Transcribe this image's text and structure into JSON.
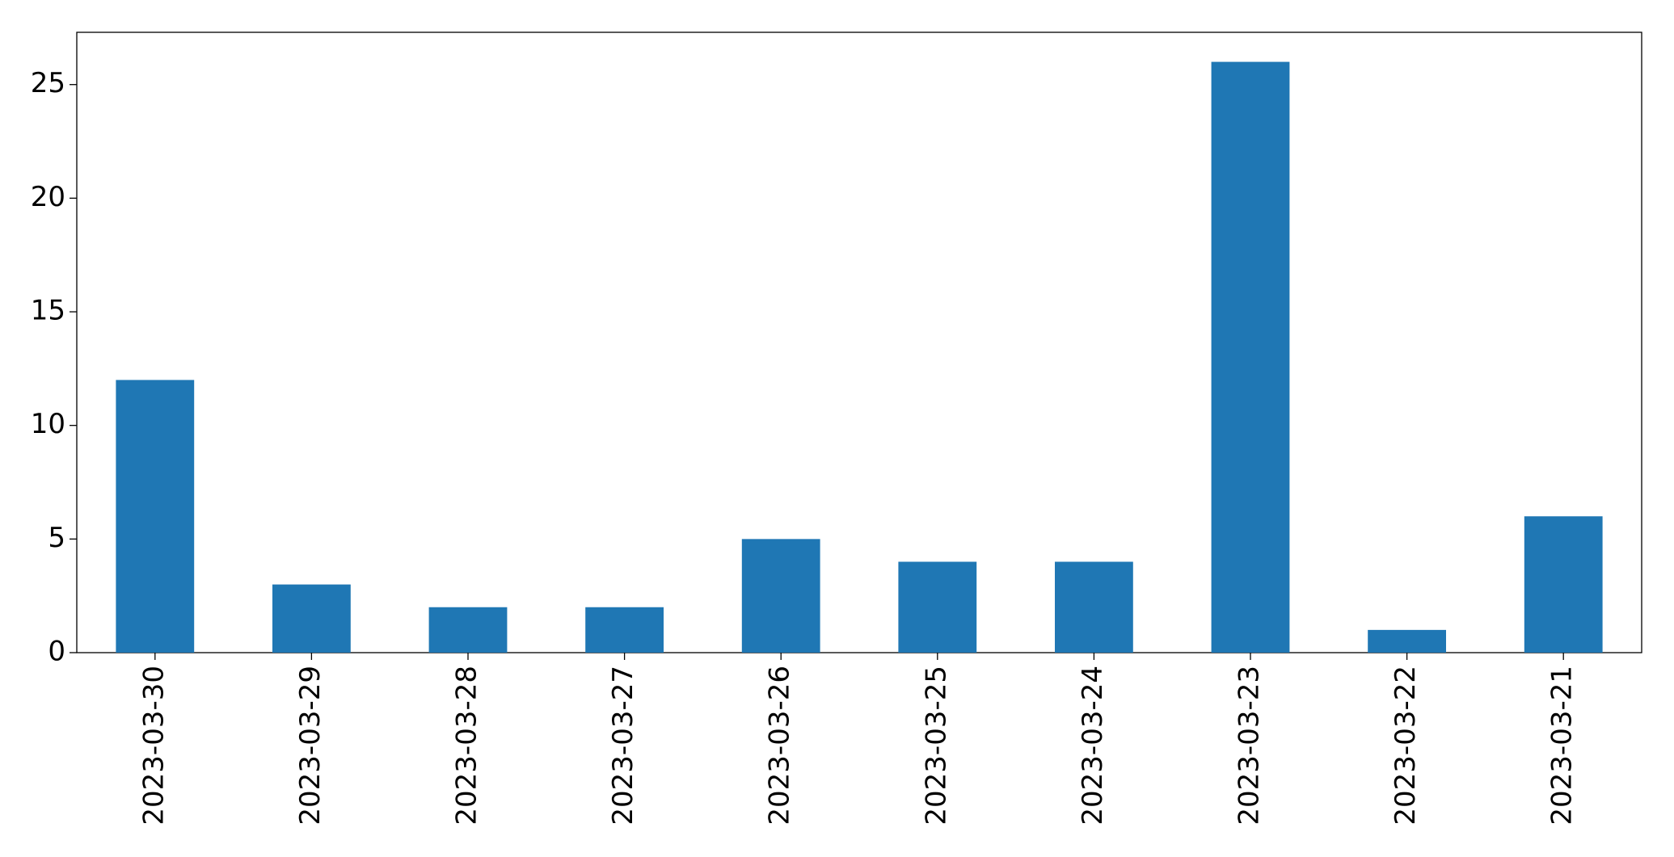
{
  "chart_data": {
    "type": "bar",
    "categories": [
      "2023-03-30",
      "2023-03-29",
      "2023-03-28",
      "2023-03-27",
      "2023-03-26",
      "2023-03-25",
      "2023-03-24",
      "2023-03-23",
      "2023-03-22",
      "2023-03-21"
    ],
    "values": [
      12,
      3,
      2,
      2,
      5,
      4,
      4,
      26,
      1,
      6
    ],
    "color": "#1f77b4",
    "ylim": [
      0,
      27.3
    ],
    "yticks": [
      0,
      5,
      10,
      15,
      20,
      25
    ],
    "grid": false
  }
}
